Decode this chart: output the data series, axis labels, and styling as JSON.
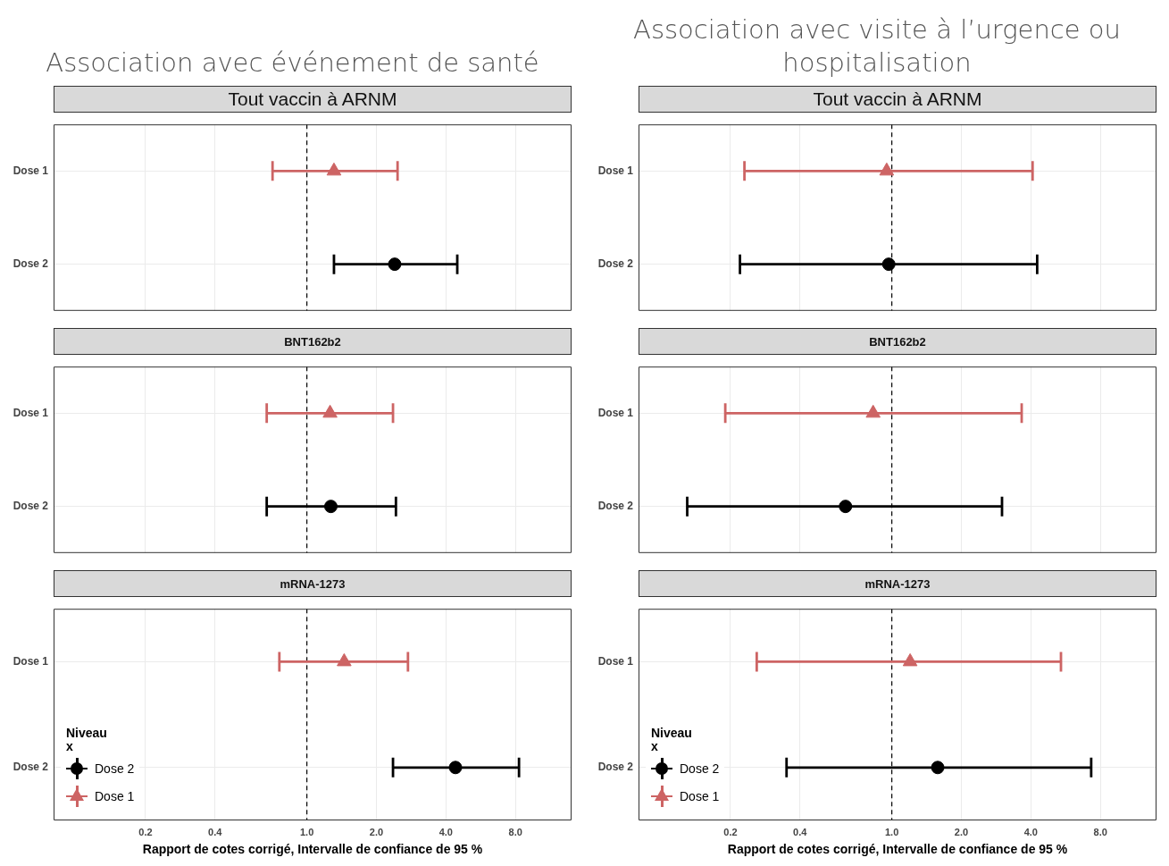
{
  "chart_data": [
    {
      "type": "scatter",
      "orientation": "horizontal",
      "title": "Association avec événement de santé",
      "subtitle": "Tout vaccin à ARNM",
      "categories": [
        "Dose 1",
        "Dose 2"
      ],
      "series": [
        {
          "color": "#000000",
          "marker": "circle",
          "values": [
            null,
            2.4
          ],
          "errors": [
            null,
            [
              1.31,
              4.48
            ]
          ]
        },
        {
          "color": "#cd6464",
          "marker": "triangle",
          "values": [
            1.31,
            null
          ],
          "errors": [
            [
              0.71,
              2.47
            ],
            null
          ]
        }
      ],
      "log": "x",
      "xlim": [
        0.08,
        14
      ],
      "xticks": [
        0.2,
        0.4,
        1,
        2,
        4,
        8
      ],
      "ref_lines": [
        {
          "axis": "x",
          "value": 1,
          "line_style": "dashed"
        }
      ],
      "grid": true,
      "tick_labels": "y"
    },
    {
      "type": "scatter",
      "orientation": "horizontal",
      "title": "Association avec visite à l’urgence ou hospitalisation",
      "subtitle": "Tout vaccin à ARNM",
      "categories": [
        "Dose 1",
        "Dose 2"
      ],
      "series": [
        {
          "color": "#000000",
          "marker": "circle",
          "values": [
            null,
            0.97
          ],
          "errors": [
            null,
            [
              0.22,
              4.26
            ]
          ]
        },
        {
          "color": "#cd6464",
          "marker": "triangle",
          "values": [
            0.95,
            null
          ],
          "errors": [
            [
              0.23,
              4.07
            ],
            null
          ]
        }
      ],
      "log": "x",
      "xlim": [
        0.08,
        14
      ],
      "xticks": [
        0.2,
        0.4,
        1,
        2,
        4,
        8
      ],
      "ref_lines": [
        {
          "axis": "x",
          "value": 1,
          "line_style": "dashed"
        }
      ],
      "grid": true,
      "tick_labels": "y"
    },
    {
      "type": "scatter",
      "orientation": "horizontal",
      "subtitle": "BNT162b2",
      "categories": [
        "Dose 1",
        "Dose 2"
      ],
      "series": [
        {
          "color": "#000000",
          "marker": "circle",
          "values": [
            null,
            1.27
          ],
          "errors": [
            null,
            [
              0.67,
              2.43
            ]
          ]
        },
        {
          "color": "#cd6464",
          "marker": "triangle",
          "values": [
            1.26,
            null
          ],
          "errors": [
            [
              0.67,
              2.36
            ],
            null
          ]
        }
      ],
      "log": "x",
      "xlim": [
        0.08,
        14
      ],
      "xticks": [
        0.2,
        0.4,
        1,
        2,
        4,
        8
      ],
      "ref_lines": [
        {
          "axis": "x",
          "value": 1,
          "line_style": "dashed"
        }
      ],
      "grid": true,
      "tick_labels": "y"
    },
    {
      "type": "scatter",
      "orientation": "horizontal",
      "subtitle": "BNT162b2",
      "categories": [
        "Dose 1",
        "Dose 2"
      ],
      "series": [
        {
          "color": "#000000",
          "marker": "circle",
          "values": [
            null,
            0.63
          ],
          "errors": [
            null,
            [
              0.13,
              3.0
            ]
          ]
        },
        {
          "color": "#cd6464",
          "marker": "triangle",
          "values": [
            0.83,
            null
          ],
          "errors": [
            [
              0.19,
              3.65
            ],
            null
          ]
        }
      ],
      "log": "x",
      "xlim": [
        0.08,
        14
      ],
      "xticks": [
        0.2,
        0.4,
        1,
        2,
        4,
        8
      ],
      "ref_lines": [
        {
          "axis": "x",
          "value": 1,
          "line_style": "dashed"
        }
      ],
      "grid": true,
      "tick_labels": "y"
    },
    {
      "type": "scatter",
      "orientation": "horizontal",
      "subtitle": "mRNA-1273",
      "xlabel": "Rapport de cotes corrigé, Intervalle de confiance de 95 %",
      "legend_title": "Niveau\nx",
      "categories": [
        "Dose 1",
        "Dose 2"
      ],
      "series": [
        {
          "name": "Dose 2",
          "color": "#000000",
          "marker": "circle",
          "values": [
            null,
            4.4
          ],
          "errors": [
            null,
            [
              2.36,
              8.29
            ]
          ]
        },
        {
          "name": "Dose 1",
          "color": "#cd6464",
          "marker": "triangle",
          "values": [
            1.45,
            null
          ],
          "errors": [
            [
              0.76,
              2.74
            ],
            null
          ]
        }
      ],
      "log": "x",
      "xlim": [
        0.08,
        14
      ],
      "xticks": [
        {
          "value": 0.2,
          "label": "0.2"
        },
        {
          "value": 0.4,
          "label": "0.4"
        },
        {
          "value": 1,
          "label": "1.0"
        },
        {
          "value": 2,
          "label": "2.0"
        },
        {
          "value": 4,
          "label": "4.0"
        },
        {
          "value": 8,
          "label": "8.0"
        }
      ],
      "ref_lines": [
        {
          "axis": "x",
          "value": 1,
          "line_style": "dashed"
        }
      ],
      "grid": true,
      "legend": "bottom left"
    },
    {
      "type": "scatter",
      "orientation": "horizontal",
      "subtitle": "mRNA-1273",
      "xlabel": "Rapport de cotes corrigé, Intervalle de confiance de 95 %",
      "legend_title": "Niveau\nx",
      "categories": [
        "Dose 1",
        "Dose 2"
      ],
      "series": [
        {
          "name": "Dose 2",
          "color": "#000000",
          "marker": "circle",
          "values": [
            null,
            1.58
          ],
          "errors": [
            null,
            [
              0.35,
              7.3
            ]
          ]
        },
        {
          "name": "Dose 1",
          "color": "#cd6464",
          "marker": "triangle",
          "values": [
            1.2,
            null
          ],
          "errors": [
            [
              0.26,
              5.4
            ],
            null
          ]
        }
      ],
      "log": "x",
      "xlim": [
        0.08,
        14
      ],
      "xticks": [
        {
          "value": 0.2,
          "label": "0.2"
        },
        {
          "value": 0.4,
          "label": "0.4"
        },
        {
          "value": 1,
          "label": "1.0"
        },
        {
          "value": 2,
          "label": "2.0"
        },
        {
          "value": 4,
          "label": "4.0"
        },
        {
          "value": 8,
          "label": "8.0"
        }
      ],
      "ref_lines": [
        {
          "axis": "x",
          "value": 1,
          "line_style": "dashed"
        }
      ],
      "grid": true,
      "legend": "bottom left"
    }
  ]
}
